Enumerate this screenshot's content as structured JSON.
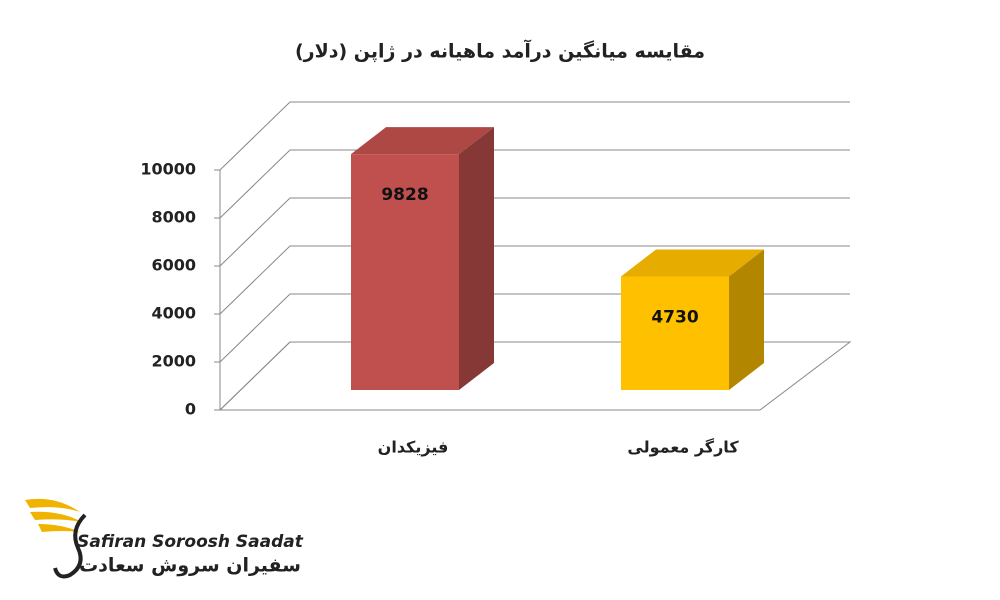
{
  "chart_data": {
    "type": "bar3d",
    "title": "مقایسه میانگین درآمد ماهیانه در ژاپن (دلار)",
    "categories": [
      "فیزیکدان",
      "کارگر معمولی"
    ],
    "values": [
      9828,
      4730
    ],
    "colors": [
      "#c0504d",
      "#ffc000"
    ],
    "ylim": [
      0,
      10000
    ],
    "yticks": [
      0,
      2000,
      4000,
      6000,
      8000,
      10000
    ],
    "grid": true
  },
  "logo": {
    "latin": "Safiran Soroosh Saadat",
    "persian": "سفیران سروش سعادت"
  }
}
